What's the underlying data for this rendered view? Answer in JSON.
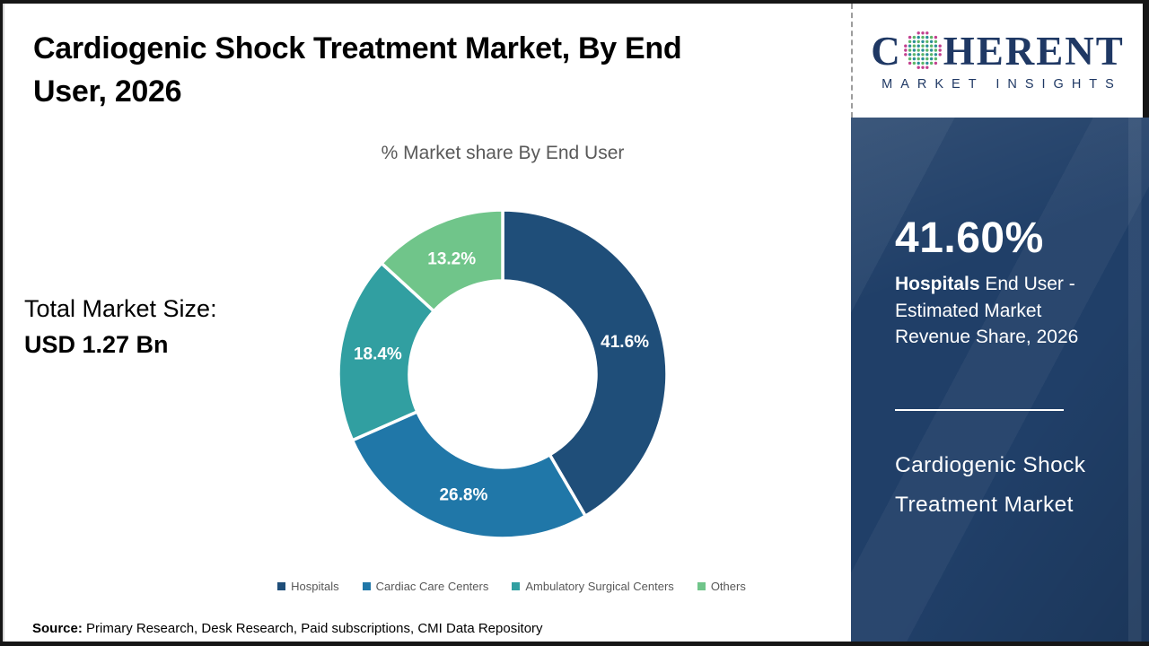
{
  "header": {
    "title": "Cardiogenic Shock Treatment Market, By End User, 2026"
  },
  "logo": {
    "brand_first": "C",
    "brand_rest": "HERENT",
    "subtitle": "MARKET INSIGHTS",
    "navy": "#1f3864",
    "globe_dot_colors": {
      "teal": "#2a8f98",
      "green": "#5cb567",
      "pink": "#c2408f"
    }
  },
  "left_stats": {
    "total_label": "Total Market Size:",
    "total_value": "USD 1.27 Bn"
  },
  "chart_data": {
    "type": "pie",
    "subtype": "donut",
    "title": "% Market share By End User",
    "categories": [
      "Hospitals",
      "Cardiac Care Centers",
      "Ambulatory Surgical Centers",
      "Others"
    ],
    "values": [
      41.6,
      26.8,
      18.4,
      13.2
    ],
    "value_labels": [
      "41.6%",
      "26.8%",
      "18.4%",
      "13.2%"
    ],
    "colors": [
      "#1F4E79",
      "#2077A8",
      "#319FA1",
      "#70C58A"
    ],
    "inner_radius_ratio": 0.57,
    "start_angle": "top",
    "direction": "clockwise",
    "label_color": "#ffffff",
    "legend_position": "bottom"
  },
  "panel": {
    "background": "#203f68",
    "stat": "41.60%",
    "desc_bold": "Hospitals",
    "desc_line1_rest": " End User -",
    "desc_line2": "Estimated Market",
    "desc_line3": "Revenue Share, 2026",
    "title_line1": "Cardiogenic Shock",
    "title_line2": "Treatment Market"
  },
  "source": {
    "label": "Source:",
    "text": " Primary Research, Desk Research, Paid subscriptions, CMI Data Repository"
  }
}
